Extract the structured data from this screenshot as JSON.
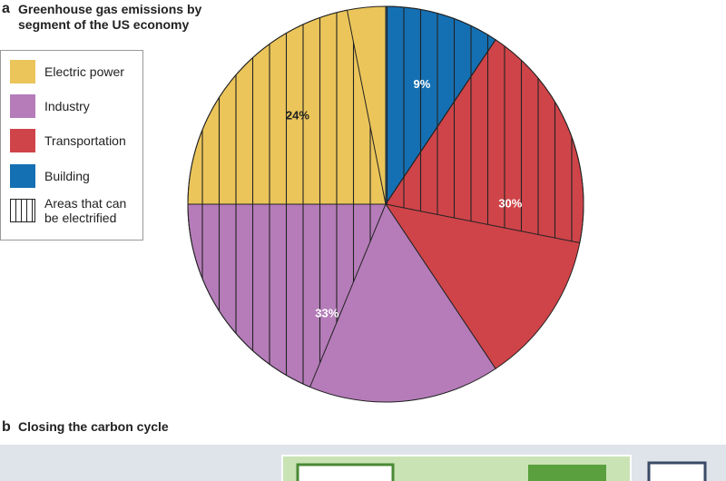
{
  "chart_data": {
    "type": "pie",
    "panel_label": "a",
    "title": "Greenhouse gas emissions by segment of the US economy",
    "series": [
      {
        "name": "Building",
        "color": "#1470b3",
        "value": 9,
        "value_label": "9%",
        "hatched_value": 9,
        "hatch_at": "start"
      },
      {
        "name": "Transportation",
        "color": "#cf4449",
        "value": 30,
        "value_label": "30%",
        "hatched_value": 18,
        "hatch_at": "start"
      },
      {
        "name": "Industry",
        "color": "#b57cb9",
        "value": 33,
        "value_label": "33%",
        "hatched_value": 18,
        "hatch_at": "end"
      },
      {
        "name": "Electric power",
        "color": "#ebc55a",
        "value": 24,
        "value_label": "24%",
        "hatched_value": 21,
        "hatch_at": "start"
      }
    ],
    "legend_order": [
      3,
      2,
      1,
      0
    ],
    "hatch_legend": "Areas that can be electrified"
  },
  "panel_b": {
    "label": "b",
    "title": "Closing the carbon cycle"
  }
}
